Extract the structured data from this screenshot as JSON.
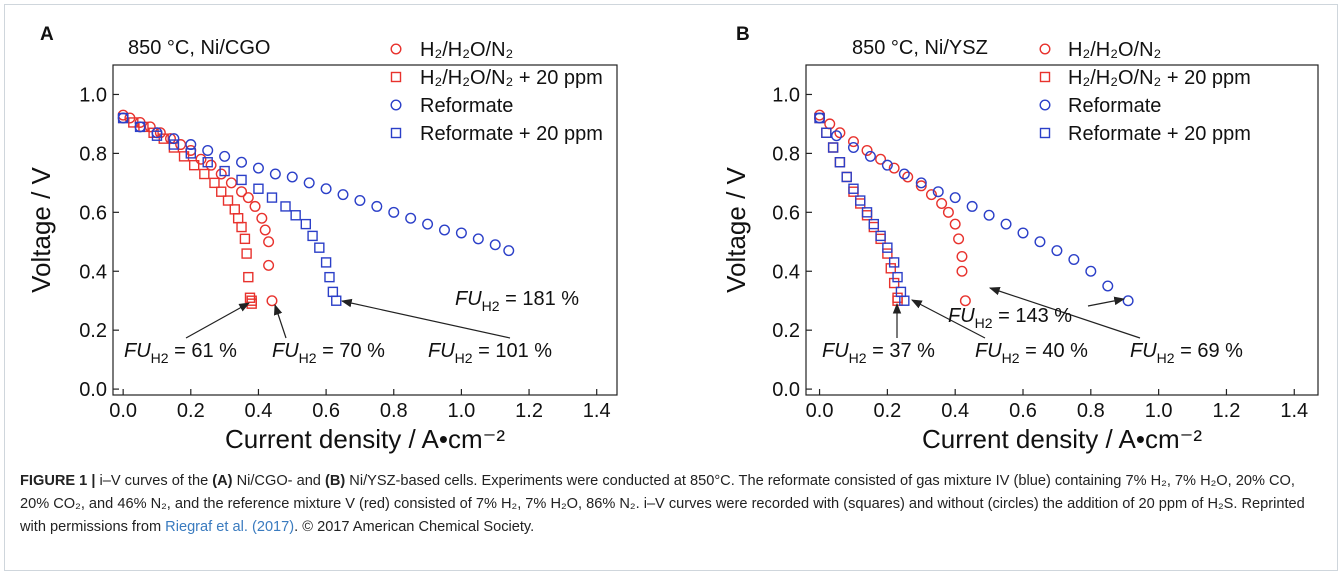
{
  "chart_data": [
    {
      "type": "scatter",
      "panel_label": "A",
      "annotation": "850 °C, Ni/CGO",
      "xlabel": "Current density / A•cm⁻²",
      "ylabel": "Voltage / V",
      "xlim": [
        -0.03,
        1.46
      ],
      "ylim": [
        -0.02,
        1.1
      ],
      "xticks": [
        {
          "value": 0,
          "label": "0.0"
        },
        0.2,
        0.4,
        0.6,
        0.8,
        {
          "value": 1,
          "label": "1.0"
        },
        1.2,
        1.4
      ],
      "yticks": [
        {
          "value": 0,
          "label": "0.0"
        },
        0.2,
        0.4,
        0.6,
        0.8,
        {
          "value": 1,
          "label": "1.0"
        }
      ],
      "series": [
        {
          "name": "H₂/H₂O/N₂",
          "color": "#e8322d",
          "marker": "circle",
          "x": [
            0,
            0.02,
            0.05,
            0.08,
            0.11,
            0.14,
            0.17,
            0.2,
            0.23,
            0.26,
            0.29,
            0.32,
            0.35,
            0.37,
            0.39,
            0.41,
            0.42,
            0.43,
            0.43,
            0.44
          ],
          "values": [
            0.93,
            0.92,
            0.905,
            0.89,
            0.87,
            0.85,
            0.83,
            0.81,
            0.78,
            0.76,
            0.73,
            0.7,
            0.67,
            0.65,
            0.62,
            0.58,
            0.54,
            0.5,
            0.42,
            0.3
          ]
        },
        {
          "name": "H₂/H₂O/N₂ + 20 ppm",
          "color": "#e8322d",
          "marker": "square",
          "x": [
            0,
            0.03,
            0.06,
            0.09,
            0.12,
            0.15,
            0.18,
            0.21,
            0.24,
            0.27,
            0.29,
            0.31,
            0.33,
            0.34,
            0.35,
            0.36,
            0.365,
            0.37,
            0.375,
            0.38,
            0.38
          ],
          "values": [
            0.92,
            0.905,
            0.89,
            0.87,
            0.85,
            0.82,
            0.79,
            0.76,
            0.73,
            0.7,
            0.67,
            0.64,
            0.61,
            0.58,
            0.55,
            0.51,
            0.46,
            0.38,
            0.31,
            0.3,
            0.29
          ]
        },
        {
          "name": "Reformate",
          "color": "#2b3fc8",
          "marker": "circle",
          "x": [
            0,
            0.05,
            0.1,
            0.15,
            0.2,
            0.25,
            0.3,
            0.35,
            0.4,
            0.45,
            0.5,
            0.55,
            0.6,
            0.65,
            0.7,
            0.75,
            0.8,
            0.85,
            0.9,
            0.95,
            1.0,
            1.05,
            1.1,
            1.14
          ],
          "values": [
            0.92,
            0.89,
            0.87,
            0.85,
            0.83,
            0.81,
            0.79,
            0.77,
            0.75,
            0.73,
            0.72,
            0.7,
            0.68,
            0.66,
            0.64,
            0.62,
            0.6,
            0.58,
            0.56,
            0.54,
            0.53,
            0.51,
            0.49,
            0.47
          ]
        },
        {
          "name": "Reformate + 20 ppm",
          "color": "#2b3fc8",
          "marker": "square",
          "x": [
            0,
            0.05,
            0.1,
            0.15,
            0.2,
            0.25,
            0.3,
            0.35,
            0.4,
            0.44,
            0.48,
            0.51,
            0.54,
            0.56,
            0.58,
            0.6,
            0.61,
            0.62,
            0.63
          ],
          "values": [
            0.92,
            0.89,
            0.86,
            0.83,
            0.8,
            0.77,
            0.74,
            0.71,
            0.68,
            0.65,
            0.62,
            0.59,
            0.56,
            0.52,
            0.48,
            0.43,
            0.38,
            0.33,
            0.3
          ]
        }
      ],
      "annotations": [
        {
          "parts": [
            "FU",
            "H2",
            " = 61 %"
          ]
        },
        {
          "parts": [
            "FU",
            "H2",
            " = 70 %"
          ]
        },
        {
          "parts": [
            "FU",
            "H2",
            " = 101 %"
          ]
        },
        {
          "parts": [
            "FU",
            "H2",
            " = 181 %"
          ]
        }
      ]
    },
    {
      "type": "scatter",
      "panel_label": "B",
      "annotation": "850 °C, Ni/YSZ",
      "xlabel": "Current density / A•cm⁻²",
      "ylabel": "Voltage / V",
      "xlim": [
        -0.04,
        1.47
      ],
      "ylim": [
        -0.02,
        1.1
      ],
      "xticks": [
        {
          "value": 0,
          "label": "0.0"
        },
        0.2,
        0.4,
        0.6,
        0.8,
        {
          "value": 1,
          "label": "1.0"
        },
        1.2,
        1.4
      ],
      "yticks": [
        {
          "value": 0,
          "label": "0.0"
        },
        0.2,
        0.4,
        0.6,
        0.8,
        {
          "value": 1,
          "label": "1.0"
        }
      ],
      "series": [
        {
          "name": "H₂/H₂O/N₂",
          "color": "#e8322d",
          "marker": "circle",
          "x": [
            0,
            0.03,
            0.06,
            0.1,
            0.14,
            0.18,
            0.22,
            0.26,
            0.3,
            0.33,
            0.36,
            0.38,
            0.4,
            0.41,
            0.42,
            0.42,
            0.43
          ],
          "values": [
            0.93,
            0.9,
            0.87,
            0.84,
            0.81,
            0.78,
            0.75,
            0.72,
            0.69,
            0.66,
            0.63,
            0.6,
            0.56,
            0.51,
            0.45,
            0.4,
            0.3
          ]
        },
        {
          "name": "H₂/H₂O/N₂ + 20 ppm",
          "color": "#e8322d",
          "marker": "square",
          "x": [
            0,
            0.02,
            0.04,
            0.06,
            0.08,
            0.1,
            0.12,
            0.14,
            0.16,
            0.18,
            0.2,
            0.21,
            0.22,
            0.23,
            0.23
          ],
          "values": [
            0.92,
            0.87,
            0.82,
            0.77,
            0.72,
            0.67,
            0.63,
            0.59,
            0.55,
            0.51,
            0.46,
            0.41,
            0.36,
            0.31,
            0.3
          ]
        },
        {
          "name": "Reformate",
          "color": "#2b3fc8",
          "marker": "circle",
          "x": [
            0,
            0.05,
            0.1,
            0.15,
            0.2,
            0.25,
            0.3,
            0.35,
            0.4,
            0.45,
            0.5,
            0.55,
            0.6,
            0.65,
            0.7,
            0.75,
            0.8,
            0.85,
            0.91
          ],
          "values": [
            0.92,
            0.86,
            0.82,
            0.79,
            0.76,
            0.73,
            0.7,
            0.67,
            0.65,
            0.62,
            0.59,
            0.56,
            0.53,
            0.5,
            0.47,
            0.44,
            0.4,
            0.35,
            0.3
          ]
        },
        {
          "name": "Reformate + 20 ppm",
          "color": "#2b3fc8",
          "marker": "square",
          "x": [
            0,
            0.02,
            0.04,
            0.06,
            0.08,
            0.1,
            0.12,
            0.14,
            0.16,
            0.18,
            0.2,
            0.22,
            0.23,
            0.24,
            0.25
          ],
          "values": [
            0.92,
            0.87,
            0.82,
            0.77,
            0.72,
            0.68,
            0.64,
            0.6,
            0.56,
            0.52,
            0.48,
            0.43,
            0.38,
            0.33,
            0.3
          ]
        }
      ],
      "annotations": [
        {
          "parts": [
            "FU",
            "H2",
            " = 37 %"
          ]
        },
        {
          "parts": [
            "FU",
            "H2",
            " = 40 %"
          ]
        },
        {
          "parts": [
            "FU",
            "H2",
            " = 69 %"
          ]
        },
        {
          "parts": [
            "FU",
            "H2",
            " = 143 %"
          ]
        }
      ]
    }
  ],
  "caption": {
    "segments": [
      {
        "text": "FIGURE 1 |",
        "style": "bold"
      },
      {
        "text": " i–V curves of the ",
        "style": "plain"
      },
      {
        "text": "(A)",
        "style": "bold"
      },
      {
        "text": " Ni/CGO- and ",
        "style": "plain"
      },
      {
        "text": "(B)",
        "style": "bold"
      },
      {
        "text": " Ni/YSZ-based cells. Experiments were conducted at 850°C. The reformate consisted of gas mixture IV (blue) containing 7% H₂, 7% H₂O, 20% CO, 20% CO₂, and 46% N₂, and the reference mixture V (red) consisted of 7% H₂, 7% H₂O, 86% N₂. i–V curves were recorded with (squares) and without (circles) the addition of 20 ppm of H₂S. Reprinted with permissions from ",
        "style": "plain"
      },
      {
        "text": "Riegraf et al. (2017)",
        "style": "link"
      },
      {
        "text": ". © 2017 American Chemical Society.",
        "style": "plain"
      }
    ]
  }
}
